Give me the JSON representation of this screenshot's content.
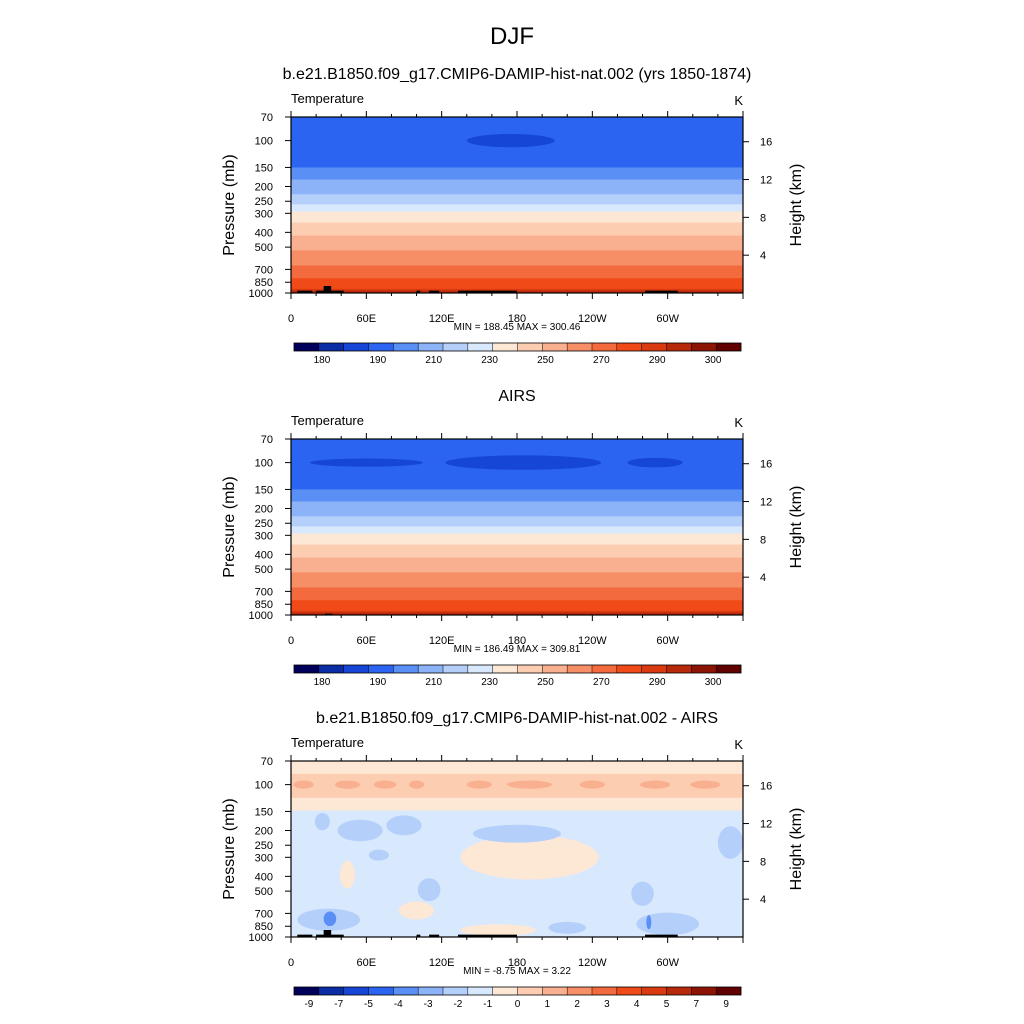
{
  "figure": {
    "title": "DJF"
  },
  "chart_data": [
    {
      "type": "heatmap",
      "title": "b.e21.B1850.f09_g17.CMIP6-DAMIP-hist-nat.002 (yrs 1850-1874)",
      "left_label": "Temperature",
      "units": "K",
      "ylabel": "Pressure (mb)",
      "ylabel_right": "Height (km)",
      "xticks": [
        "0",
        "60E",
        "120E",
        "180",
        "120W",
        "60W"
      ],
      "yticks": [
        "70",
        "100",
        "150",
        "200",
        "250",
        "300",
        "400",
        "500",
        "700",
        "850",
        "1000"
      ],
      "yticks_right": [
        "16",
        "12",
        "8",
        "4"
      ],
      "stats": "MIN = 188.45  MAX = 300.46",
      "min": 188.45,
      "max": 300.46,
      "colorbar_labels": [
        "180",
        "190",
        "210",
        "230",
        "250",
        "270",
        "290",
        "300"
      ],
      "colorbar_colors": [
        "#00005a",
        "#0a2da5",
        "#1546d6",
        "#2a64f0",
        "#5a8ff5",
        "#8cb2f8",
        "#b5cffb",
        "#d8e8fd",
        "#fde8d6",
        "#fccdb0",
        "#f9b090",
        "#f68e66",
        "#f26a3e",
        "#f04a18",
        "#d93a10",
        "#b8280a",
        "#8c1405",
        "#600000"
      ],
      "bands": [
        {
          "top": 70,
          "bottom": 150,
          "color": "#2a64f0"
        },
        {
          "top": 150,
          "bottom": 180,
          "color": "#5a8ff5"
        },
        {
          "top": 180,
          "bottom": 225,
          "color": "#8cb2f8"
        },
        {
          "top": 225,
          "bottom": 262,
          "color": "#b5cffb"
        },
        {
          "top": 262,
          "bottom": 292,
          "color": "#d8e8fd"
        },
        {
          "top": 292,
          "bottom": 345,
          "color": "#fde8d6"
        },
        {
          "top": 345,
          "bottom": 420,
          "color": "#fccdb0"
        },
        {
          "top": 420,
          "bottom": 525,
          "color": "#f9b090"
        },
        {
          "top": 525,
          "bottom": 660,
          "color": "#f68e66"
        },
        {
          "top": 660,
          "bottom": 800,
          "color": "#f26a3e"
        },
        {
          "top": 800,
          "bottom": 940,
          "color": "#f04a18"
        },
        {
          "top": 940,
          "bottom": 1000,
          "color": "#d93a10"
        }
      ],
      "blobs": [
        {
          "lon": 175,
          "p": 100,
          "rx": 35,
          "rp": 8,
          "color": "#1546d6"
        }
      ],
      "terrain": [
        [
          5,
          17,
          965
        ],
        [
          26,
          32,
          900
        ],
        [
          20,
          42,
          965
        ],
        [
          100,
          103,
          965
        ],
        [
          110,
          118,
          965
        ],
        [
          133,
          180,
          965
        ],
        [
          282,
          308,
          965
        ]
      ]
    },
    {
      "type": "heatmap",
      "title": "AIRS",
      "left_label": "Temperature",
      "units": "K",
      "ylabel": "Pressure (mb)",
      "ylabel_right": "Height (km)",
      "xticks": [
        "0",
        "60E",
        "120E",
        "180",
        "120W",
        "60W"
      ],
      "yticks": [
        "70",
        "100",
        "150",
        "200",
        "250",
        "300",
        "400",
        "500",
        "700",
        "850",
        "1000"
      ],
      "yticks_right": [
        "16",
        "12",
        "8",
        "4"
      ],
      "stats": "MIN = 186.49  MAX = 309.81",
      "min": 186.49,
      "max": 309.81,
      "colorbar_labels": [
        "180",
        "190",
        "210",
        "230",
        "250",
        "270",
        "290",
        "300"
      ],
      "colorbar_colors": [
        "#00005a",
        "#0a2da5",
        "#1546d6",
        "#2a64f0",
        "#5a8ff5",
        "#8cb2f8",
        "#b5cffb",
        "#d8e8fd",
        "#fde8d6",
        "#fccdb0",
        "#f9b090",
        "#f68e66",
        "#f26a3e",
        "#f04a18",
        "#d93a10",
        "#b8280a",
        "#8c1405",
        "#600000"
      ],
      "bands": [
        {
          "top": 70,
          "bottom": 150,
          "color": "#2a64f0"
        },
        {
          "top": 150,
          "bottom": 180,
          "color": "#5a8ff5"
        },
        {
          "top": 180,
          "bottom": 225,
          "color": "#8cb2f8"
        },
        {
          "top": 225,
          "bottom": 262,
          "color": "#b5cffb"
        },
        {
          "top": 262,
          "bottom": 292,
          "color": "#d8e8fd"
        },
        {
          "top": 292,
          "bottom": 345,
          "color": "#fde8d6"
        },
        {
          "top": 345,
          "bottom": 420,
          "color": "#fccdb0"
        },
        {
          "top": 420,
          "bottom": 525,
          "color": "#f9b090"
        },
        {
          "top": 525,
          "bottom": 660,
          "color": "#f68e66"
        },
        {
          "top": 660,
          "bottom": 800,
          "color": "#f26a3e"
        },
        {
          "top": 800,
          "bottom": 940,
          "color": "#f04a18"
        },
        {
          "top": 940,
          "bottom": 1000,
          "color": "#d93a10"
        }
      ],
      "blobs": [
        {
          "lon": 185,
          "p": 100,
          "rx": 62,
          "rp": 9,
          "color": "#1546d6"
        },
        {
          "lon": 60,
          "p": 100,
          "rx": 45,
          "rp": 4,
          "color": "#1546d6"
        },
        {
          "lon": 290,
          "p": 100,
          "rx": 22,
          "rp": 5,
          "color": "#1546d6"
        }
      ],
      "terrain": [
        [
          27,
          33,
          980
        ]
      ]
    },
    {
      "type": "heatmap",
      "title": "b.e21.B1850.f09_g17.CMIP6-DAMIP-hist-nat.002 - AIRS",
      "left_label": "Temperature",
      "units": "K",
      "ylabel": "Pressure (mb)",
      "ylabel_right": "Height (km)",
      "xticks": [
        "0",
        "60E",
        "120E",
        "180",
        "120W",
        "60W"
      ],
      "yticks": [
        "70",
        "100",
        "150",
        "200",
        "250",
        "300",
        "400",
        "500",
        "700",
        "850",
        "1000"
      ],
      "yticks_right": [
        "16",
        "12",
        "8",
        "4"
      ],
      "stats": "MIN = -8.75  MAX =   3.22",
      "min": -8.75,
      "max": 3.22,
      "colorbar_labels": [
        "-9",
        "-7",
        "-5",
        "-4",
        "-3",
        "-2",
        "-1",
        "0",
        "1",
        "2",
        "3",
        "4",
        "5",
        "7",
        "9"
      ],
      "colorbar_colors": [
        "#00005a",
        "#0a2da5",
        "#1546d6",
        "#2a64f0",
        "#5a8ff5",
        "#8cb2f8",
        "#b5cffb",
        "#d8e8fd",
        "#fde8d6",
        "#fccdb0",
        "#f9b090",
        "#f68e66",
        "#f26a3e",
        "#f04a18",
        "#d93a10",
        "#b8280a",
        "#8c1405",
        "#600000"
      ],
      "bands": [
        {
          "top": 70,
          "bottom": 85,
          "color": "#fde8d6"
        },
        {
          "top": 85,
          "bottom": 122,
          "color": "#fccdb0"
        },
        {
          "top": 122,
          "bottom": 148,
          "color": "#fde8d6"
        },
        {
          "top": 148,
          "bottom": 1000,
          "color": "#d8e8fd"
        }
      ],
      "blobs": [
        {
          "lon": 10,
          "p": 100,
          "rx": 8,
          "rp": 4,
          "color": "#f9b090"
        },
        {
          "lon": 45,
          "p": 100,
          "rx": 10,
          "rp": 4,
          "color": "#f9b090"
        },
        {
          "lon": 75,
          "p": 100,
          "rx": 9,
          "rp": 4,
          "color": "#f9b090"
        },
        {
          "lon": 100,
          "p": 100,
          "rx": 6,
          "rp": 4,
          "color": "#f9b090"
        },
        {
          "lon": 150,
          "p": 100,
          "rx": 10,
          "rp": 4,
          "color": "#f9b090"
        },
        {
          "lon": 190,
          "p": 100,
          "rx": 18,
          "rp": 4,
          "color": "#f9b090"
        },
        {
          "lon": 240,
          "p": 100,
          "rx": 10,
          "rp": 4,
          "color": "#f9b090"
        },
        {
          "lon": 290,
          "p": 100,
          "rx": 12,
          "rp": 4,
          "color": "#f9b090"
        },
        {
          "lon": 330,
          "p": 100,
          "rx": 12,
          "rp": 4,
          "color": "#f9b090"
        },
        {
          "lon": 190,
          "p": 300,
          "rx": 55,
          "rp": 110,
          "color": "#fde8d6"
        },
        {
          "lon": 45,
          "p": 390,
          "rx": 6,
          "rp": 80,
          "color": "#fde8d6"
        },
        {
          "lon": 100,
          "p": 670,
          "rx": 14,
          "rp": 80,
          "color": "#fde8d6"
        },
        {
          "lon": 165,
          "p": 900,
          "rx": 30,
          "rp": 60,
          "color": "#fde8d6"
        },
        {
          "lon": 25,
          "p": 175,
          "rx": 6,
          "rp": 20,
          "color": "#b5cffb"
        },
        {
          "lon": 55,
          "p": 200,
          "rx": 18,
          "rp": 30,
          "color": "#b5cffb"
        },
        {
          "lon": 90,
          "p": 185,
          "rx": 14,
          "rp": 25,
          "color": "#b5cffb"
        },
        {
          "lon": 70,
          "p": 290,
          "rx": 8,
          "rp": 18,
          "color": "#b5cffb"
        },
        {
          "lon": 180,
          "p": 210,
          "rx": 35,
          "rp": 25,
          "color": "#b5cffb"
        },
        {
          "lon": 350,
          "p": 240,
          "rx": 10,
          "rp": 60,
          "color": "#b5cffb"
        },
        {
          "lon": 110,
          "p": 490,
          "rx": 9,
          "rp": 80,
          "color": "#b5cffb"
        },
        {
          "lon": 280,
          "p": 520,
          "rx": 9,
          "rp": 90,
          "color": "#b5cffb"
        },
        {
          "lon": 30,
          "p": 770,
          "rx": 25,
          "rp": 120,
          "color": "#b5cffb"
        },
        {
          "lon": 300,
          "p": 820,
          "rx": 25,
          "rp": 130,
          "color": "#b5cffb"
        },
        {
          "lon": 220,
          "p": 870,
          "rx": 15,
          "rp": 60,
          "color": "#b5cffb"
        },
        {
          "lon": 31,
          "p": 760,
          "rx": 5,
          "rp": 70,
          "color": "#5a8ff5"
        },
        {
          "lon": 285,
          "p": 800,
          "rx": 2,
          "rp": 70,
          "color": "#5a8ff5"
        }
      ],
      "terrain": [
        [
          5,
          17,
          965
        ],
        [
          26,
          32,
          900
        ],
        [
          20,
          42,
          965
        ],
        [
          100,
          103,
          965
        ],
        [
          110,
          118,
          965
        ],
        [
          133,
          180,
          965
        ],
        [
          282,
          308,
          965
        ]
      ]
    }
  ]
}
